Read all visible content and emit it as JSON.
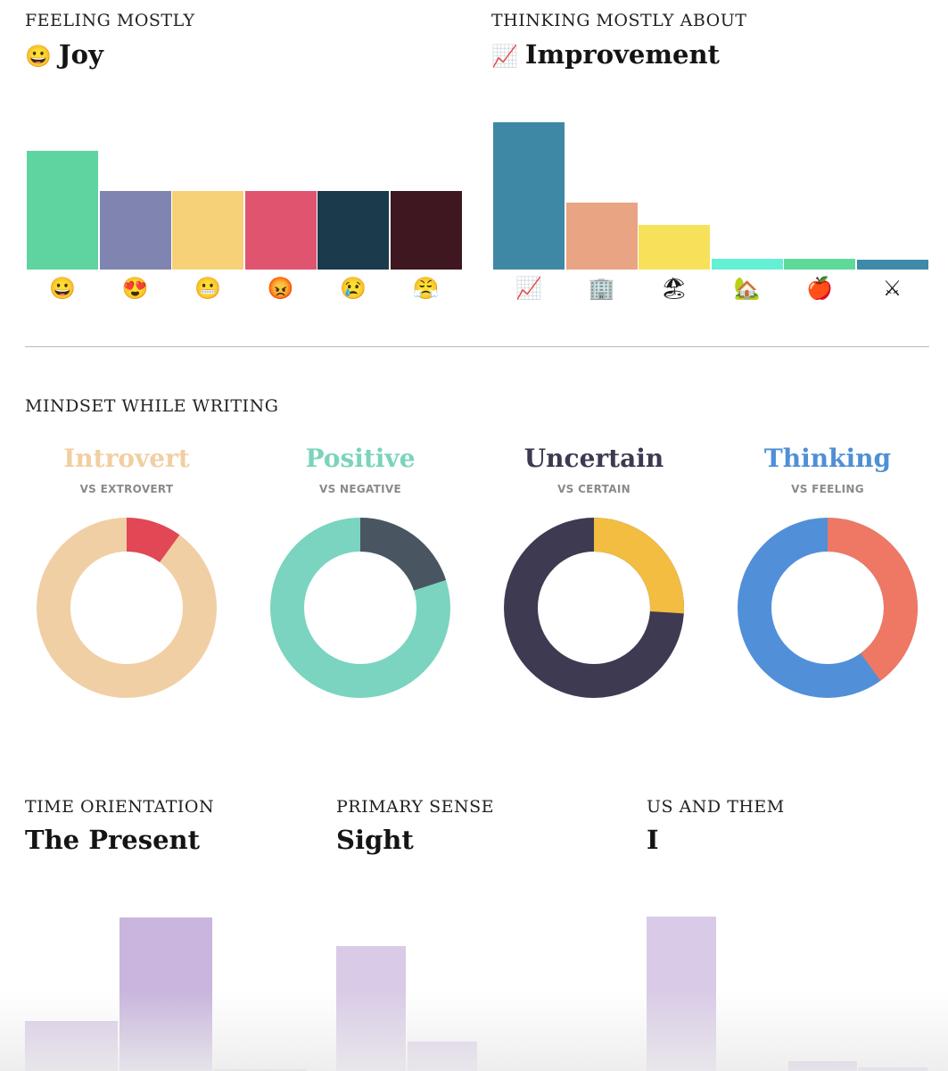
{
  "feeling": {
    "caption": "FEELING MOSTLY",
    "title_emoji": "😀",
    "title": "Joy",
    "chart_data": {
      "type": "bar",
      "categories": [
        "😀",
        "😍",
        "😬",
        "😡",
        "😢",
        "😤"
      ],
      "values": [
        133,
        88,
        88,
        88,
        88,
        88
      ],
      "colors": [
        "#5fd3a0",
        "#7f84b0",
        "#f7d178",
        "#e0546f",
        "#1b3a4c",
        "#3e1720"
      ],
      "ylim": [
        0,
        170
      ]
    }
  },
  "thinking_about": {
    "caption": "THINKING MOSTLY ABOUT",
    "title_emoji": "📈",
    "title": "Improvement",
    "chart_data": {
      "type": "bar",
      "categories": [
        "📈",
        "🏢",
        "🏖",
        "🏡",
        "🍎",
        "⚔"
      ],
      "values": [
        165,
        75,
        50,
        12,
        12,
        11
      ],
      "colors": [
        "#3f88a5",
        "#e9a483",
        "#f8e15a",
        "#64f0d4",
        "#5fd99a",
        "#3e8aa8"
      ],
      "ylim": [
        0,
        170
      ]
    }
  },
  "mindset": {
    "caption": "MINDSET WHILE WRITING",
    "items": [
      {
        "title": "Introvert",
        "subtitle": "VS EXTROVERT",
        "title_color": "#f1cfa2",
        "chart_data": {
          "type": "pie",
          "labels": [
            "Introvert",
            "Extrovert"
          ],
          "values": [
            0.9,
            0.1
          ],
          "colors": [
            "#f1cfa4",
            "#e14755"
          ]
        }
      },
      {
        "title": "Positive",
        "subtitle": "VS NEGATIVE",
        "title_color": "#7ad4bc",
        "chart_data": {
          "type": "pie",
          "labels": [
            "Positive",
            "Negative"
          ],
          "values": [
            0.8,
            0.2
          ],
          "colors": [
            "#7ad4bf",
            "#4a5562"
          ]
        }
      },
      {
        "title": "Uncertain",
        "subtitle": "VS CERTAIN",
        "title_color": "#3d3950",
        "chart_data": {
          "type": "pie",
          "labels": [
            "Uncertain",
            "Certain"
          ],
          "values": [
            0.74,
            0.26
          ],
          "colors": [
            "#3e3a52",
            "#f2bd41"
          ]
        }
      },
      {
        "title": "Thinking",
        "subtitle": "VS FEELING",
        "title_color": "#4f8fd6",
        "chart_data": {
          "type": "pie",
          "labels": [
            "Thinking",
            "Feeling"
          ],
          "values": [
            0.6,
            0.4
          ],
          "colors": [
            "#5190d8",
            "#ee7864"
          ]
        }
      }
    ]
  },
  "time_orientation": {
    "caption": "TIME ORIENTATION",
    "title": "The Present",
    "chart_data": {
      "type": "bar",
      "categories": [
        "",
        "",
        ""
      ],
      "values": [
        56,
        172,
        2
      ],
      "colors": [
        "#d8c9e6",
        "#c9b5dd",
        "#c9b5dd"
      ],
      "ylim": [
        0,
        180
      ]
    }
  },
  "primary_sense": {
    "caption": "PRIMARY SENSE",
    "title": "Sight",
    "chart_data": {
      "type": "bar",
      "categories": [
        "",
        ""
      ],
      "values": [
        140,
        33
      ],
      "colors": [
        "#d9cbe7",
        "#d9cbe7"
      ],
      "ylim": [
        0,
        180
      ]
    }
  },
  "us_and_them": {
    "caption": "US AND THEM",
    "title": "I",
    "chart_data": {
      "type": "bar",
      "categories": [
        "",
        "",
        "",
        ""
      ],
      "values": [
        173,
        0,
        11,
        4
      ],
      "colors": [
        "#d9cbe7",
        "#d9cbe7",
        "#c9b5dd",
        "#c9b5dd"
      ],
      "ylim": [
        0,
        180
      ]
    }
  }
}
